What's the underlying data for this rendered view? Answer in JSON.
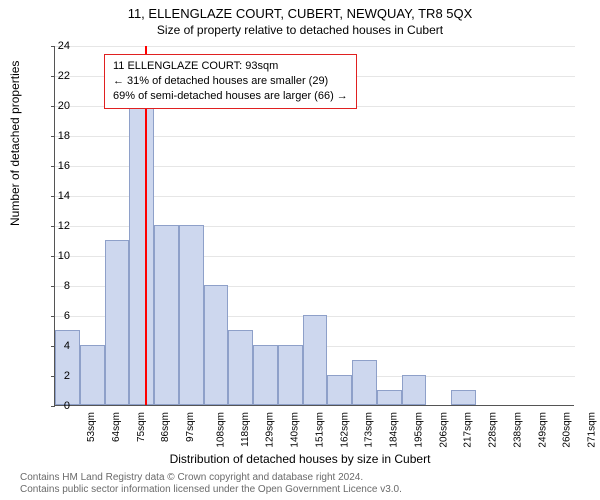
{
  "title": "11, ELLENGLAZE COURT, CUBERT, NEWQUAY, TR8 5QX",
  "subtitle": "Size of property relative to detached houses in Cubert",
  "chart": {
    "type": "histogram",
    "xlabel": "Distribution of detached houses by size in Cubert",
    "ylabel": "Number of detached properties",
    "ylim": [
      0,
      24
    ],
    "ytick_step": 2,
    "x_start": 53,
    "x_step": 11,
    "x_unit": "sqm",
    "bar_fill": "#cdd7ee",
    "bar_border": "#8ea0c9",
    "grid_color": "#888888",
    "background": "#ffffff",
    "bars": [
      {
        "label": "53sqm",
        "value": 5
      },
      {
        "label": "64sqm",
        "value": 4
      },
      {
        "label": "75sqm",
        "value": 11
      },
      {
        "label": "86sqm",
        "value": 20
      },
      {
        "label": "97sqm",
        "value": 12
      },
      {
        "label": "108sqm",
        "value": 12
      },
      {
        "label": "118sqm",
        "value": 8
      },
      {
        "label": "129sqm",
        "value": 5
      },
      {
        "label": "140sqm",
        "value": 4
      },
      {
        "label": "151sqm",
        "value": 4
      },
      {
        "label": "162sqm",
        "value": 6
      },
      {
        "label": "173sqm",
        "value": 2
      },
      {
        "label": "184sqm",
        "value": 3
      },
      {
        "label": "195sqm",
        "value": 1
      },
      {
        "label": "206sqm",
        "value": 2
      },
      {
        "label": "217sqm",
        "value": 0
      },
      {
        "label": "228sqm",
        "value": 1
      },
      {
        "label": "238sqm",
        "value": 0
      },
      {
        "label": "249sqm",
        "value": 0
      },
      {
        "label": "260sqm",
        "value": 0
      },
      {
        "label": "271sqm",
        "value": 0
      }
    ],
    "marker": {
      "x_value": 93,
      "color": "#ff0000"
    }
  },
  "legend": {
    "line1": "11 ELLENGLAZE COURT: 93sqm",
    "line2": "← 31% of detached houses are smaller (29)",
    "line3": "69% of semi-detached houses are larger (66) →"
  },
  "credits": {
    "line1": "Contains HM Land Registry data © Crown copyright and database right 2024.",
    "line2": "Contains public sector information licensed under the Open Government Licence v3.0."
  }
}
